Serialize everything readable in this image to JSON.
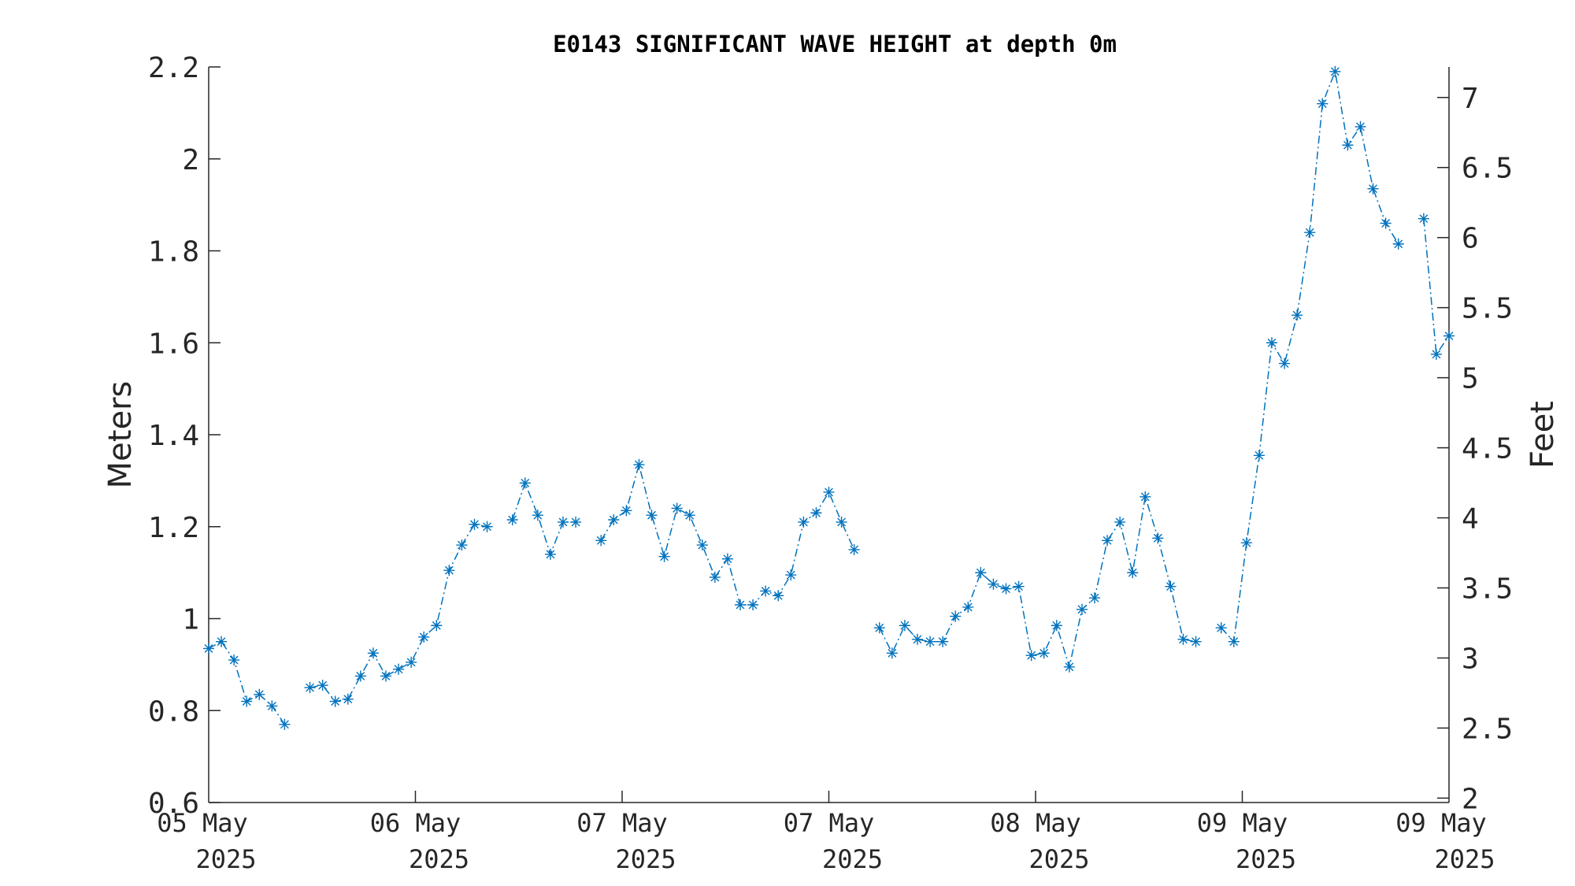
{
  "chart_data": {
    "type": "line",
    "title": "E0143 SIGNIFICANT WAVE HEIGHT at depth 0m",
    "ylabel": "Meters",
    "y2label": "Feet",
    "ylim": [
      0.6,
      2.2
    ],
    "y2lim": [
      1.9685,
      7.2178
    ],
    "yticks": [
      "0.6",
      "0.8",
      "1",
      "1.2",
      "1.4",
      "1.6",
      "1.8",
      "2",
      "2.2"
    ],
    "y2ticks": [
      "2",
      "2.5",
      "3",
      "3.5",
      "4",
      "4.5",
      "5",
      "5.5",
      "6",
      "6.5",
      "7"
    ],
    "xtick_labels": [
      {
        "day": "05 May",
        "year": "2025"
      },
      {
        "day": "06 May",
        "year": "2025"
      },
      {
        "day": "07 May",
        "year": "2025"
      },
      {
        "day": "07 May",
        "year": "2025"
      },
      {
        "day": "08 May",
        "year": "2025"
      },
      {
        "day": "09 May",
        "year": "2025"
      },
      {
        "day": "09 May",
        "year": "2025"
      }
    ],
    "grid": false,
    "series_color": "#0072BD",
    "marker": "asterisk",
    "line_style": "dash-dot",
    "series": [
      {
        "values": [
          0.935,
          0.95,
          0.91,
          0.82,
          0.835,
          0.81,
          0.77,
          null,
          0.85,
          0.855,
          0.82,
          0.825,
          0.875,
          0.925,
          0.875,
          0.89,
          0.905,
          0.96,
          0.985,
          1.105,
          1.16,
          1.205,
          1.2,
          null,
          1.215,
          1.295,
          1.225,
          1.14,
          1.21,
          1.21,
          null,
          1.17,
          1.215,
          1.235,
          1.335,
          1.225,
          1.135,
          1.24,
          1.225,
          1.16,
          1.09,
          1.13,
          1.03,
          1.03,
          1.06,
          1.05,
          1.095,
          1.21,
          1.23,
          1.275,
          1.21,
          1.15,
          null,
          0.98,
          0.925,
          0.985,
          0.955,
          0.95,
          0.95,
          1.005,
          1.025,
          1.1,
          1.075,
          1.065,
          1.07,
          0.92,
          0.925,
          0.985,
          0.895,
          1.02,
          1.045,
          1.17,
          1.21,
          1.1,
          1.265,
          1.175,
          1.07,
          0.955,
          0.95,
          null,
          0.98,
          0.95,
          1.165,
          1.355,
          1.6,
          1.555,
          1.66,
          1.84,
          2.12,
          2.19,
          2.03,
          2.07,
          1.935,
          1.86,
          1.815,
          null,
          1.87,
          1.575,
          1.615
        ]
      }
    ]
  }
}
